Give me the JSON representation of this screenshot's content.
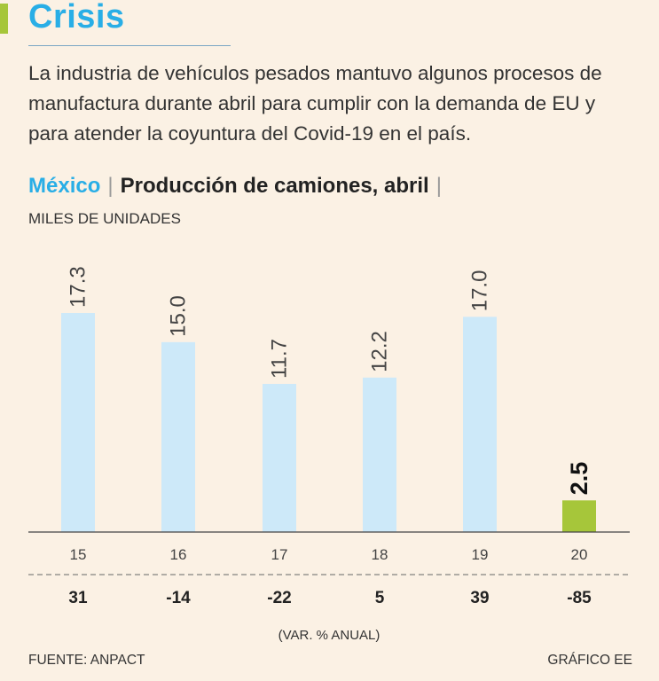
{
  "header": {
    "title": "Crisis",
    "description": "La industria de vehículos pesados mantuvo algunos procesos de manufactura durante abril para cumplir con la demanda de EU y para atender la coyuntura del Covid-19 en el país.",
    "country": "México",
    "subject": "Producción de camiones, abril",
    "separator": "|"
  },
  "chart_data": {
    "type": "bar",
    "title": "Producción de camiones, abril",
    "ylabel": "MILES DE UNIDADES",
    "units_label": "MILES DE UNIDADES",
    "categories": [
      "15",
      "16",
      "17",
      "18",
      "19",
      "20"
    ],
    "values": [
      17.3,
      15.0,
      11.7,
      12.2,
      17.0,
      2.5
    ],
    "value_labels": [
      "17.3",
      "15.0",
      "11.7",
      "12.2",
      "17.0",
      "2.5"
    ],
    "variation_values": [
      "31",
      "-14",
      "-22",
      "5",
      "39",
      "-85"
    ],
    "variation_label": "(VAR. % ANUAL)",
    "ylim": [
      0,
      17.3
    ],
    "colors": {
      "bar": "#cde9f9",
      "highlight": "#a6c63a",
      "axis": "#444444"
    },
    "highlight_index": 5
  },
  "footer": {
    "source": "FUENTE: ANPACT",
    "credit": "GRÁFICO EE"
  }
}
